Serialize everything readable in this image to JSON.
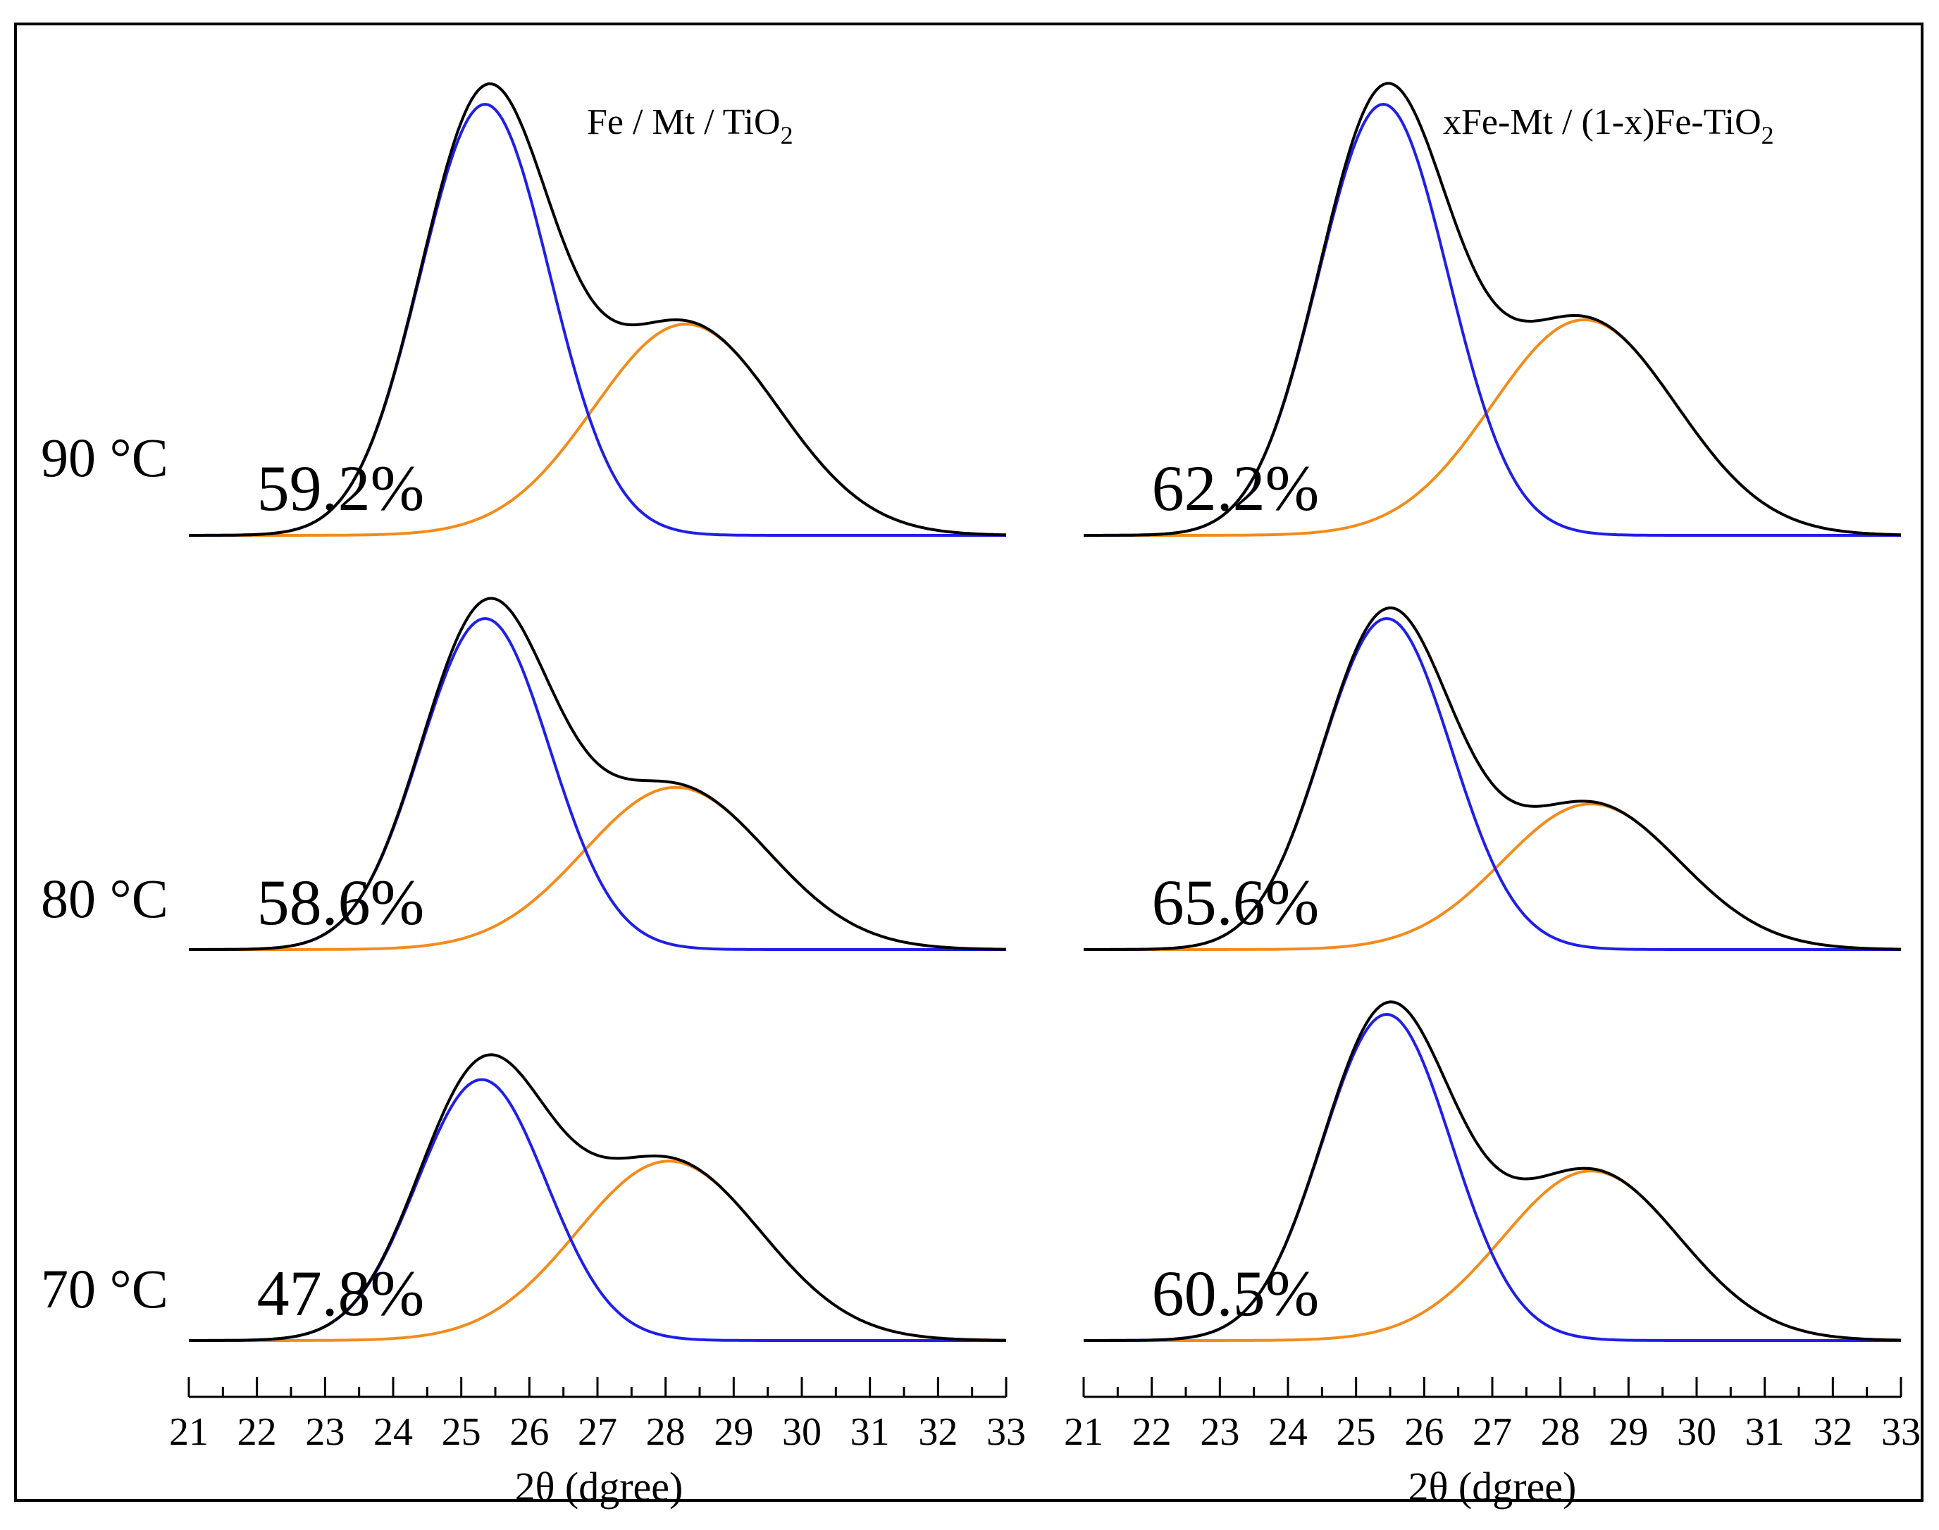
{
  "figure": {
    "temperatures": [
      "90 °C",
      "80 °C",
      "70 °C"
    ],
    "panels": [
      {
        "title_main": "Fe / Mt / TiO",
        "title_sub": "2"
      },
      {
        "title_main": "xFe-Mt / (1-x)Fe-TiO",
        "title_sub": "2"
      }
    ],
    "xlabel": "2θ (dgree)"
  },
  "colors": {
    "total": "#000000",
    "anatase": "#1f1fe8",
    "rutile": "#f28c1c"
  },
  "chart_data": [
    {
      "type": "line",
      "title": "Fe / Mt / TiO2",
      "xlabel": "2θ (dgree)",
      "xlim": [
        21,
        33
      ],
      "xticks": [
        21,
        22,
        23,
        24,
        25,
        26,
        27,
        28,
        29,
        30,
        31,
        32,
        33
      ],
      "y_axis_shown": false,
      "curves_per_row": [
        "sum",
        "peak1",
        "peak2"
      ],
      "rows": [
        {
          "label": "90 °C",
          "percent": "59.2%",
          "peak1": {
            "center": 25.35,
            "width": 0.95,
            "height": 1.0
          },
          "peak2": {
            "center": 28.3,
            "width": 1.35,
            "height": 0.49
          }
        },
        {
          "label": "80 °C",
          "percent": "58.6%",
          "peak1": {
            "center": 25.35,
            "width": 0.95,
            "height": 1.0
          },
          "peak2": {
            "center": 28.15,
            "width": 1.35,
            "height": 0.49
          }
        },
        {
          "label": "70 °C",
          "percent": "47.8%",
          "peak1": {
            "center": 25.3,
            "width": 0.95,
            "height": 0.8
          },
          "peak2": {
            "center": 28.05,
            "width": 1.35,
            "height": 0.55
          }
        }
      ]
    },
    {
      "type": "line",
      "title": "xFe-Mt / (1-x)Fe-TiO2",
      "xlabel": "2θ (dgree)",
      "xlim": [
        21,
        33
      ],
      "xticks": [
        21,
        22,
        23,
        24,
        25,
        26,
        27,
        28,
        29,
        30,
        31,
        32,
        33
      ],
      "y_axis_shown": false,
      "curves_per_row": [
        "sum",
        "peak1",
        "peak2"
      ],
      "rows": [
        {
          "percent": "62.2%",
          "peak1": {
            "center": 25.4,
            "width": 0.95,
            "height": 1.0
          },
          "peak2": {
            "center": 28.35,
            "width": 1.35,
            "height": 0.5
          }
        },
        {
          "percent": "65.6%",
          "peak1": {
            "center": 25.45,
            "width": 0.95,
            "height": 1.0
          },
          "peak2": {
            "center": 28.45,
            "width": 1.3,
            "height": 0.44
          }
        },
        {
          "percent": "60.5%",
          "peak1": {
            "center": 25.45,
            "width": 0.95,
            "height": 1.0
          },
          "peak2": {
            "center": 28.45,
            "width": 1.3,
            "height": 0.52
          }
        }
      ]
    }
  ]
}
